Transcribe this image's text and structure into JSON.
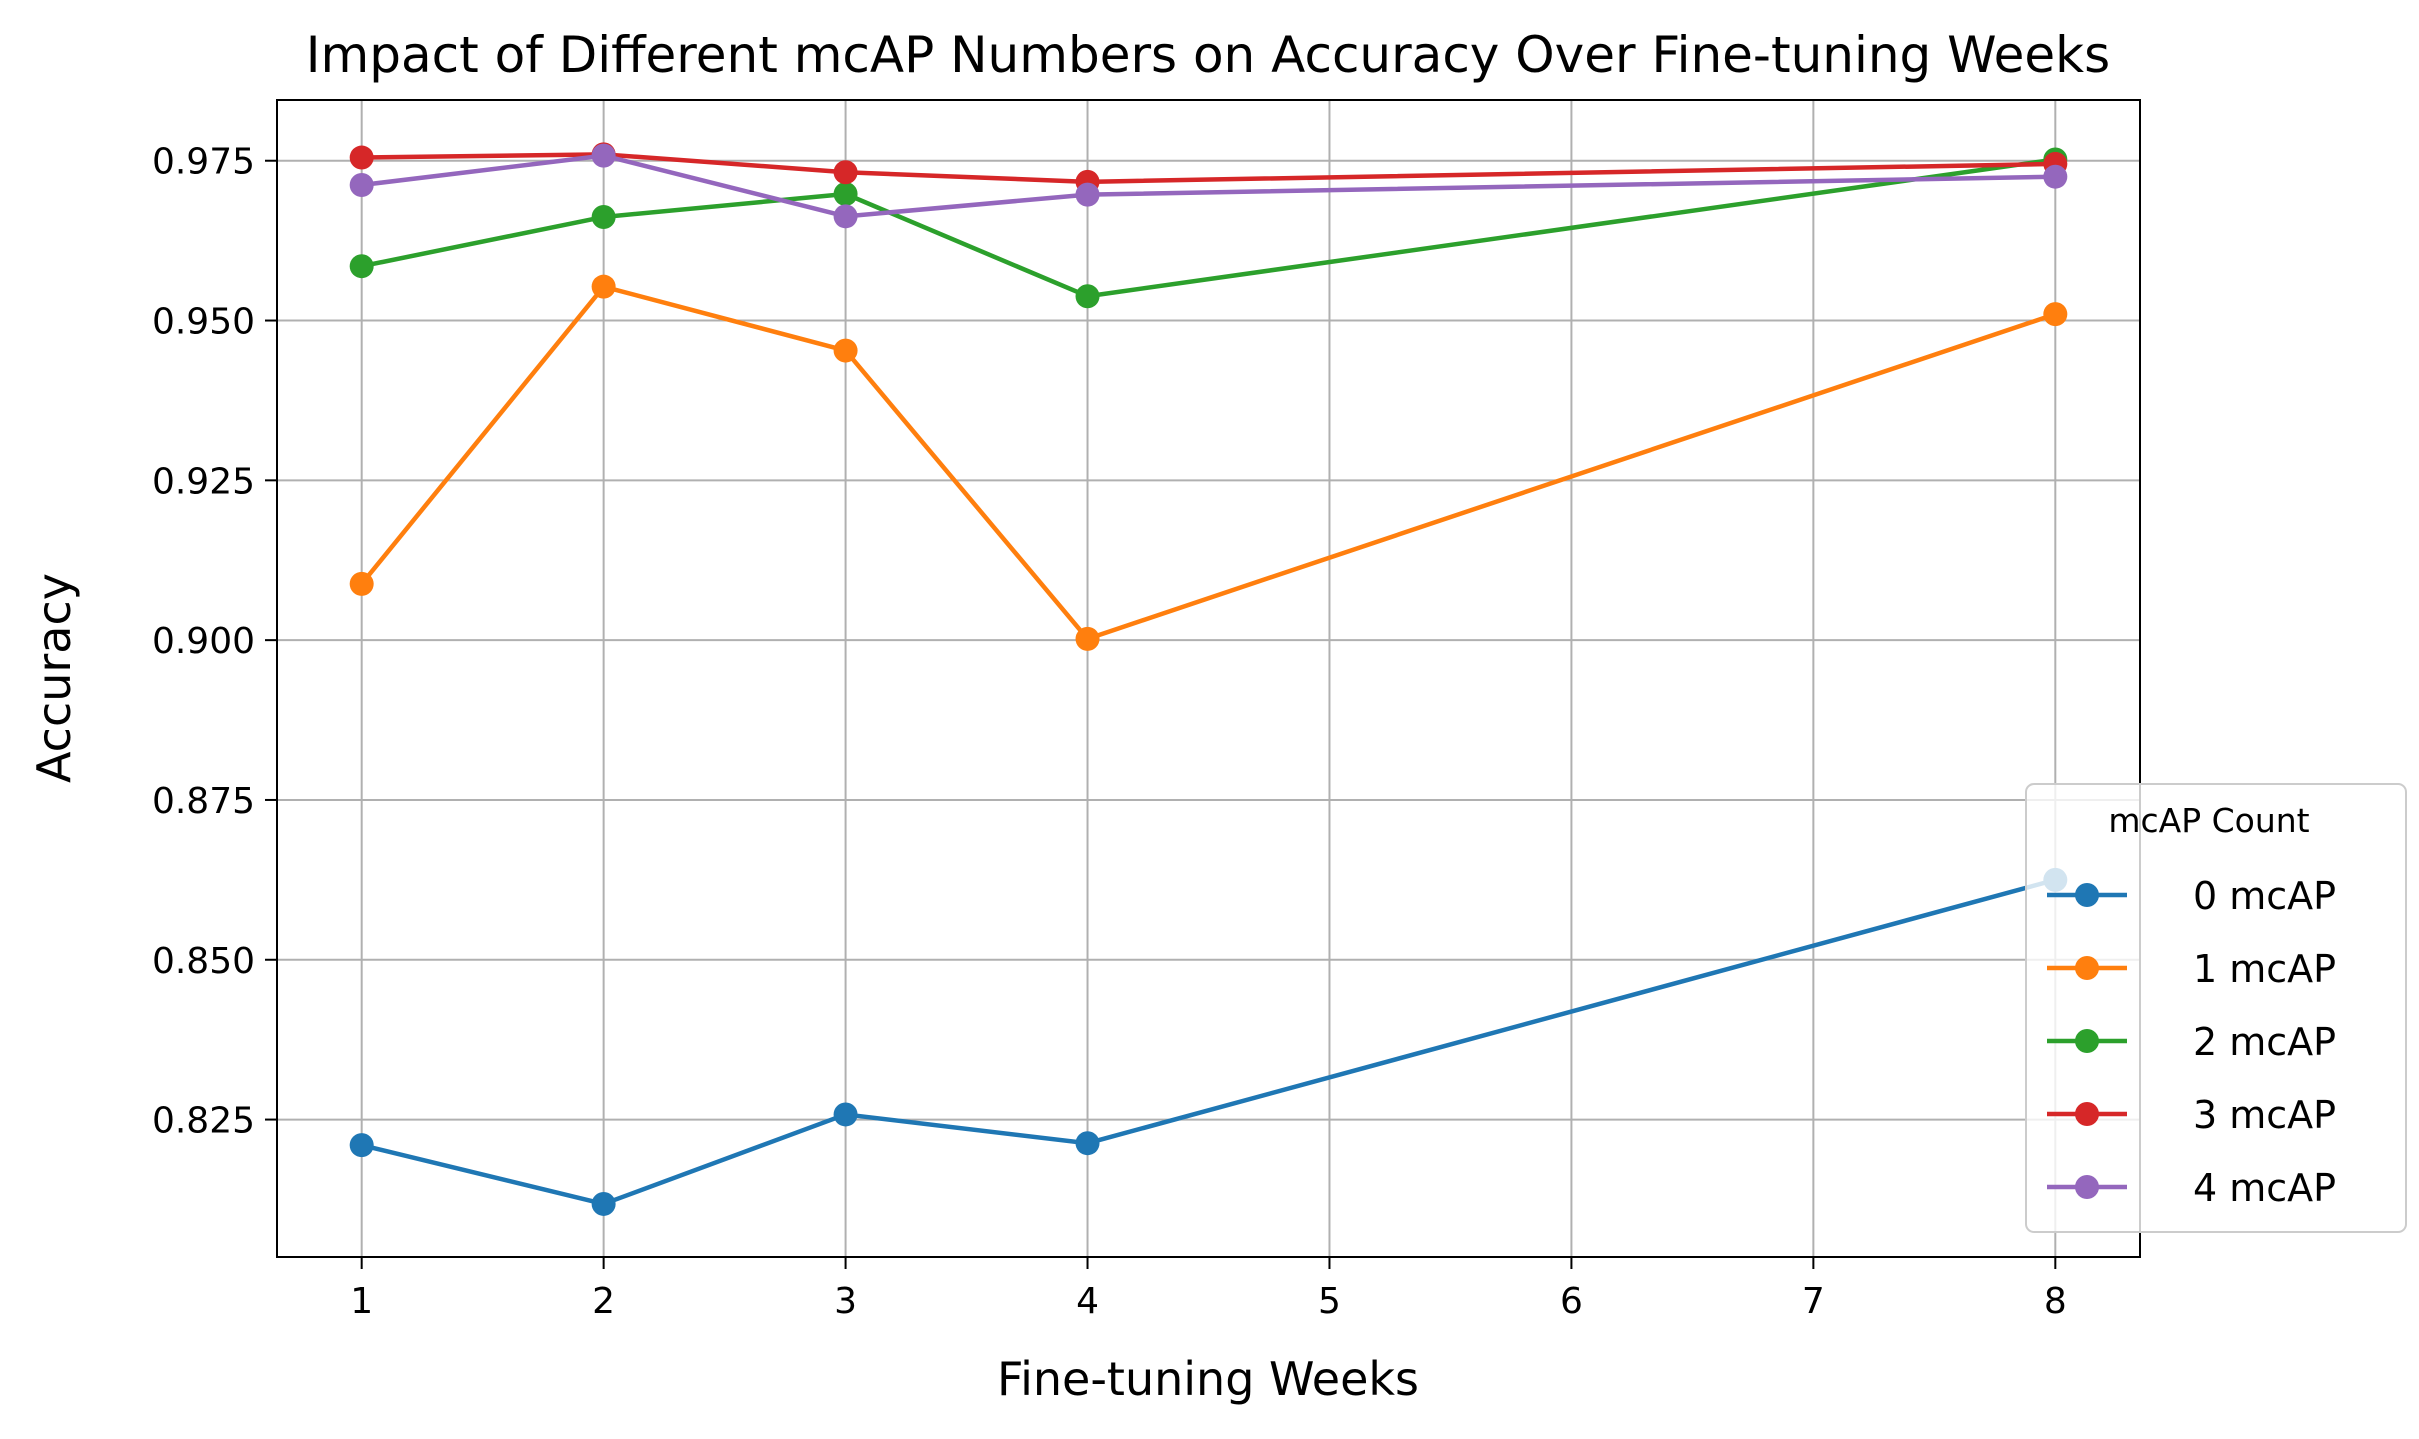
{
  "chart_data": {
    "type": "line",
    "title": "Impact of Different mcAP Numbers on Accuracy Over Fine-tuning Weeks",
    "xlabel": "Fine-tuning Weeks",
    "ylabel": "Accuracy",
    "x": [
      1,
      2,
      3,
      4,
      8
    ],
    "xlim": [
      0.65,
      8.35
    ],
    "ylim": [
      0.8035,
      0.9845
    ],
    "xticks": [
      1,
      2,
      3,
      4,
      5,
      6,
      7,
      8
    ],
    "xtick_labels": [
      "1",
      "2",
      "3",
      "4",
      "5",
      "6",
      "7",
      "8"
    ],
    "yticks": [
      0.825,
      0.85,
      0.875,
      0.9,
      0.925,
      0.95,
      0.975
    ],
    "ytick_labels": [
      "0.825",
      "0.850",
      "0.875",
      "0.900",
      "0.925",
      "0.950",
      "0.975"
    ],
    "grid": true,
    "legend": {
      "title": "mcAP Count",
      "placement": "lower-right"
    },
    "series": [
      {
        "name": "0 mcAP",
        "color": "#1f77b4",
        "values": [
          0.821,
          0.8118,
          0.8258,
          0.8213,
          0.8625
        ]
      },
      {
        "name": "1 mcAP",
        "color": "#ff7f0e",
        "values": [
          0.9088,
          0.9553,
          0.9453,
          0.9002,
          0.951
        ]
      },
      {
        "name": "2 mcAP",
        "color": "#2ca02c",
        "values": [
          0.9585,
          0.9662,
          0.9698,
          0.9538,
          0.9752
        ]
      },
      {
        "name": "3 mcAP",
        "color": "#d62728",
        "values": [
          0.9755,
          0.976,
          0.9732,
          0.9717,
          0.9745
        ]
      },
      {
        "name": "4 mcAP",
        "color": "#9467bd",
        "values": [
          0.9712,
          0.9758,
          0.9663,
          0.9697,
          0.9725
        ]
      }
    ]
  }
}
